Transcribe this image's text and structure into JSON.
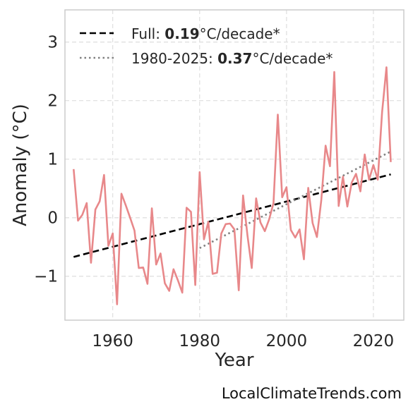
{
  "chart_data": {
    "type": "line",
    "xlabel": "Year",
    "ylabel": "Anomaly (°C)",
    "xlim": [
      1949,
      2027
    ],
    "ylim": [
      -1.75,
      3.55
    ],
    "xticks": [
      1960,
      1980,
      2000,
      2020
    ],
    "yticks": [
      3,
      2,
      1,
      0,
      -1
    ],
    "ytick_labels": [
      "3",
      "2",
      "1",
      "0",
      "−1"
    ],
    "grid": true,
    "legend_position": "top-left",
    "colors": {
      "series": "#e8888a",
      "trend_full": "#000000",
      "trend_recent": "#808080"
    },
    "series": [
      {
        "x": [
          1951,
          1952,
          1953,
          1954,
          1955,
          1956,
          1957,
          1958,
          1959,
          1960,
          1961,
          1962,
          1963,
          1964,
          1965,
          1966,
          1967,
          1968,
          1969,
          1970,
          1971,
          1972,
          1973,
          1974,
          1975,
          1976,
          1977,
          1978,
          1979,
          1980,
          1981,
          1982,
          1983,
          1984,
          1985,
          1986,
          1987,
          1988,
          1989,
          1990,
          1991,
          1992,
          1993,
          1994,
          1995,
          1996,
          1997,
          1998,
          1999,
          2000,
          2001,
          2002,
          2003,
          2004,
          2005,
          2006,
          2007,
          2008,
          2009,
          2010,
          2011,
          2012,
          2013,
          2014,
          2015,
          2016,
          2017,
          2018,
          2019,
          2020,
          2021,
          2022,
          2023,
          2024
        ],
        "values": [
          0.83,
          -0.05,
          0.05,
          0.25,
          -0.77,
          0.14,
          0.28,
          0.73,
          -0.48,
          -0.27,
          -1.48,
          0.41,
          0.21,
          0.0,
          -0.22,
          -0.86,
          -0.85,
          -1.13,
          0.16,
          -0.8,
          -0.61,
          -1.12,
          -1.25,
          -0.88,
          -1.07,
          -1.28,
          0.17,
          0.1,
          -1.15,
          0.78,
          -0.37,
          -0.07,
          -0.96,
          -0.94,
          -0.27,
          -0.11,
          -0.1,
          -0.2,
          -1.24,
          0.38,
          -0.3,
          -0.86,
          0.33,
          -0.08,
          -0.23,
          -0.03,
          0.25,
          1.76,
          0.35,
          0.52,
          -0.21,
          -0.34,
          -0.2,
          -0.71,
          0.51,
          -0.09,
          -0.33,
          0.3,
          1.23,
          0.88,
          2.49,
          0.2,
          0.7,
          0.19,
          0.6,
          0.75,
          0.45,
          1.08,
          0.65,
          0.9,
          0.65,
          1.8,
          2.57,
          0.95
        ]
      }
    ],
    "trend_lines": [
      {
        "legend_prefix": "Full: ",
        "legend_value": "0.19",
        "legend_suffix": "°C/decade*",
        "x": [
          1951,
          2024
        ],
        "y": [
          -0.67,
          0.74
        ]
      },
      {
        "legend_prefix": "1980-2025: ",
        "legend_value": "0.37",
        "legend_suffix": "°C/decade*",
        "x": [
          1980,
          2024
        ],
        "y": [
          -0.52,
          1.13
        ]
      }
    ]
  },
  "credit": "LocalClimateTrends.com"
}
